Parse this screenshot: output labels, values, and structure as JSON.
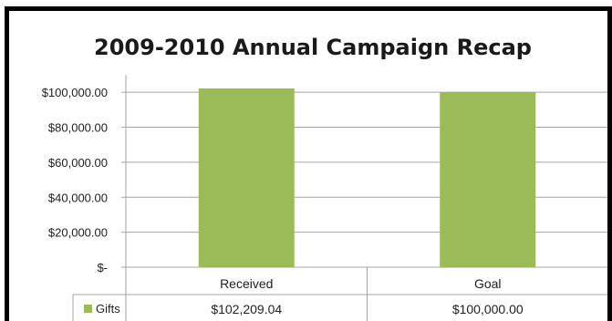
{
  "chart_data": {
    "type": "bar",
    "title": "2009-2010 Annual Campaign Recap",
    "categories": [
      "Received",
      "Goal"
    ],
    "series": [
      {
        "name": "Gifts",
        "values": [
          102209.04,
          100000.0
        ],
        "value_labels": [
          "$102,209.04",
          "$100,000.00"
        ],
        "color": "#9bbb59"
      }
    ],
    "y_ticks": [
      0,
      20000,
      40000,
      60000,
      80000,
      100000
    ],
    "y_tick_labels": [
      "$-",
      "$20,000.00",
      "$40,000.00",
      "$60,000.00",
      "$80,000.00",
      "$100,000.00"
    ],
    "ylim": [
      0,
      110000
    ],
    "grid": true,
    "legend": "data-table",
    "data_table": true
  },
  "colors": {
    "bar": "#9bbb59",
    "grid": "#a6a6a6",
    "frame": "#000000"
  }
}
